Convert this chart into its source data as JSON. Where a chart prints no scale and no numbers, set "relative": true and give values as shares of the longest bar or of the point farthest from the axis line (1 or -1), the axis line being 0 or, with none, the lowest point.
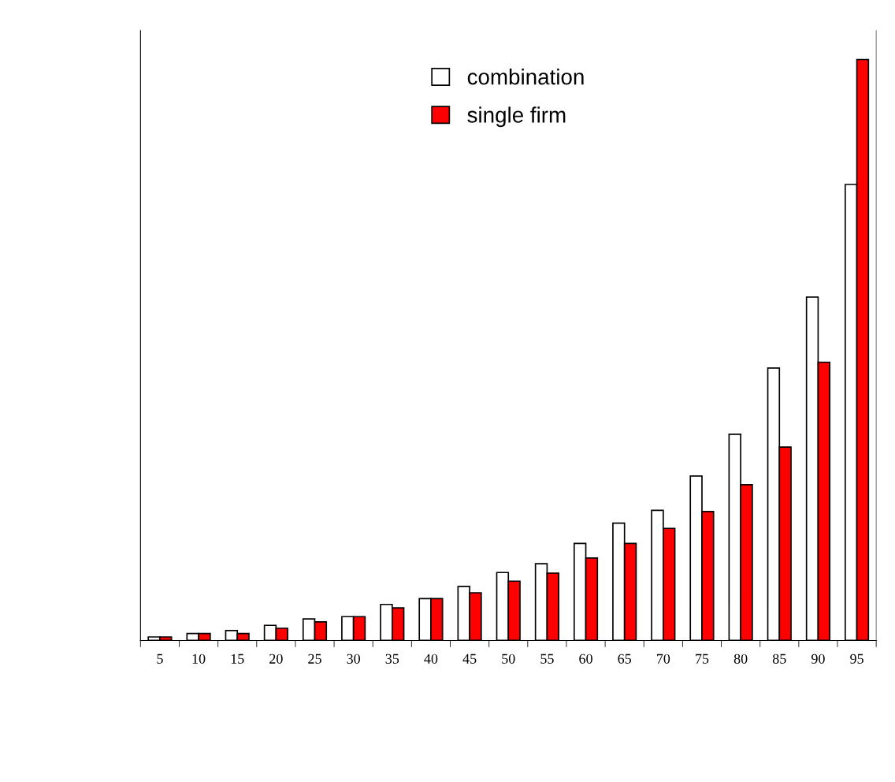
{
  "chart_data": {
    "type": "bar",
    "relative": true,
    "categories": [
      "5",
      "10",
      "15",
      "20",
      "25",
      "30",
      "35",
      "40",
      "45",
      "50",
      "55",
      "60",
      "65",
      "70",
      "75",
      "80",
      "85",
      "90",
      "95"
    ],
    "series": [
      {
        "name": "combination",
        "color": "#ffffff",
        "values": [
          0.006,
          0.012,
          0.017,
          0.026,
          0.037,
          0.041,
          0.062,
          0.072,
          0.093,
          0.117,
          0.132,
          0.167,
          0.202,
          0.224,
          0.283,
          0.355,
          0.469,
          0.591,
          0.785
        ]
      },
      {
        "name": "single firm",
        "color": "#ff0000",
        "values": [
          0.006,
          0.012,
          0.012,
          0.021,
          0.032,
          0.041,
          0.056,
          0.072,
          0.082,
          0.102,
          0.116,
          0.142,
          0.167,
          0.193,
          0.222,
          0.268,
          0.333,
          0.479,
          1
        ]
      }
    ],
    "legend": "top",
    "grid": false
  }
}
